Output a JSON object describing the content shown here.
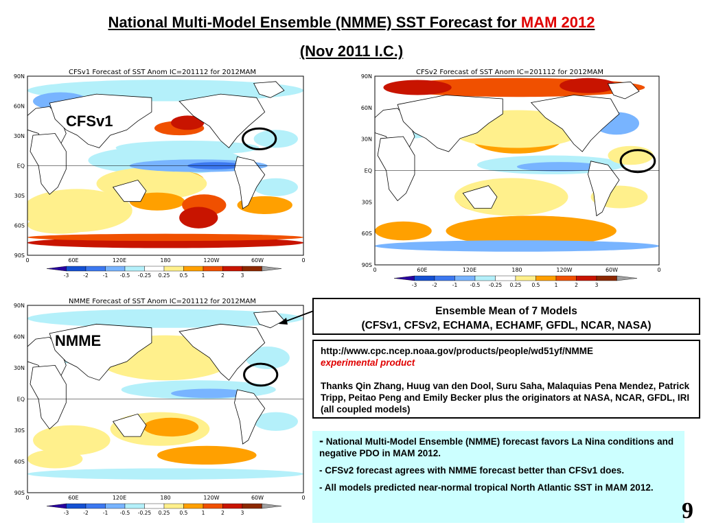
{
  "title": {
    "main_prefix": "National Multi-Model Ensemble (NMME) SST Forecast for ",
    "main_highlight": "MAM 2012",
    "sub": "(Nov 2011 I.C.)"
  },
  "maps": [
    {
      "id": "cfsv1",
      "header": "CFSv1 Forecast of SST Anom   IC=201112 for 2012MAM",
      "label": "CFSv1"
    },
    {
      "id": "cfsv2",
      "header": "CFSv2 Forecast of SST Anom   IC=201112 for 2012MAM",
      "label": ""
    },
    {
      "id": "nmme",
      "header": "NMME Forecast of SST Anom   IC=201112 for 2012MAM",
      "label": "NMME"
    }
  ],
  "axes": {
    "lat_labels": [
      "90N",
      "60N",
      "30N",
      "EQ",
      "30S",
      "60S",
      "90S"
    ],
    "lon_labels": [
      "0",
      "60E",
      "120E",
      "180",
      "120W",
      "60W",
      "0"
    ]
  },
  "colorbar": {
    "labels": [
      "-3",
      "-2",
      "-1",
      "-0.5",
      "-0.25",
      "0.25",
      "0.5",
      "1",
      "2",
      "3"
    ],
    "colors": [
      "#2800a0",
      "#1450d2",
      "#3c78f0",
      "#78b4ff",
      "#b4f0fa",
      "#ffffff",
      "#fff08c",
      "#ffa000",
      "#f05000",
      "#c81400",
      "#8c2800",
      "#a0a0a0"
    ]
  },
  "ensemble_box": {
    "line1": "Ensemble Mean of 7 Models",
    "line2": "(CFSv1, CFSv2, ECHAMA, ECHAMF, GFDL, NCAR, NASA)"
  },
  "credits_box": {
    "url": "http://www.cpc.ncep.noaa.gov/products/people/wd51yf/NMME",
    "status": "experimental product",
    "thanks": "Thanks Qin Zhang, Huug van den Dool, Suru Saha, Malaquias Pena Mendez, Patrick Tripp, Peitao Peng and Emily Becker plus the originators at NASA, NCAR, GFDL, IRI (all coupled models)"
  },
  "summary_box": {
    "bullets": [
      "National Multi-Model Ensemble (NMME) forecast favors La Nina conditions and negative PDO in MAM 2012.",
      "CFSv2 forecast agrees with NMME forecast  better than CFSv1 does.",
      "All models predicted near-normal tropical North Atlantic SST in MAM 2012."
    ]
  },
  "page_number": "9"
}
